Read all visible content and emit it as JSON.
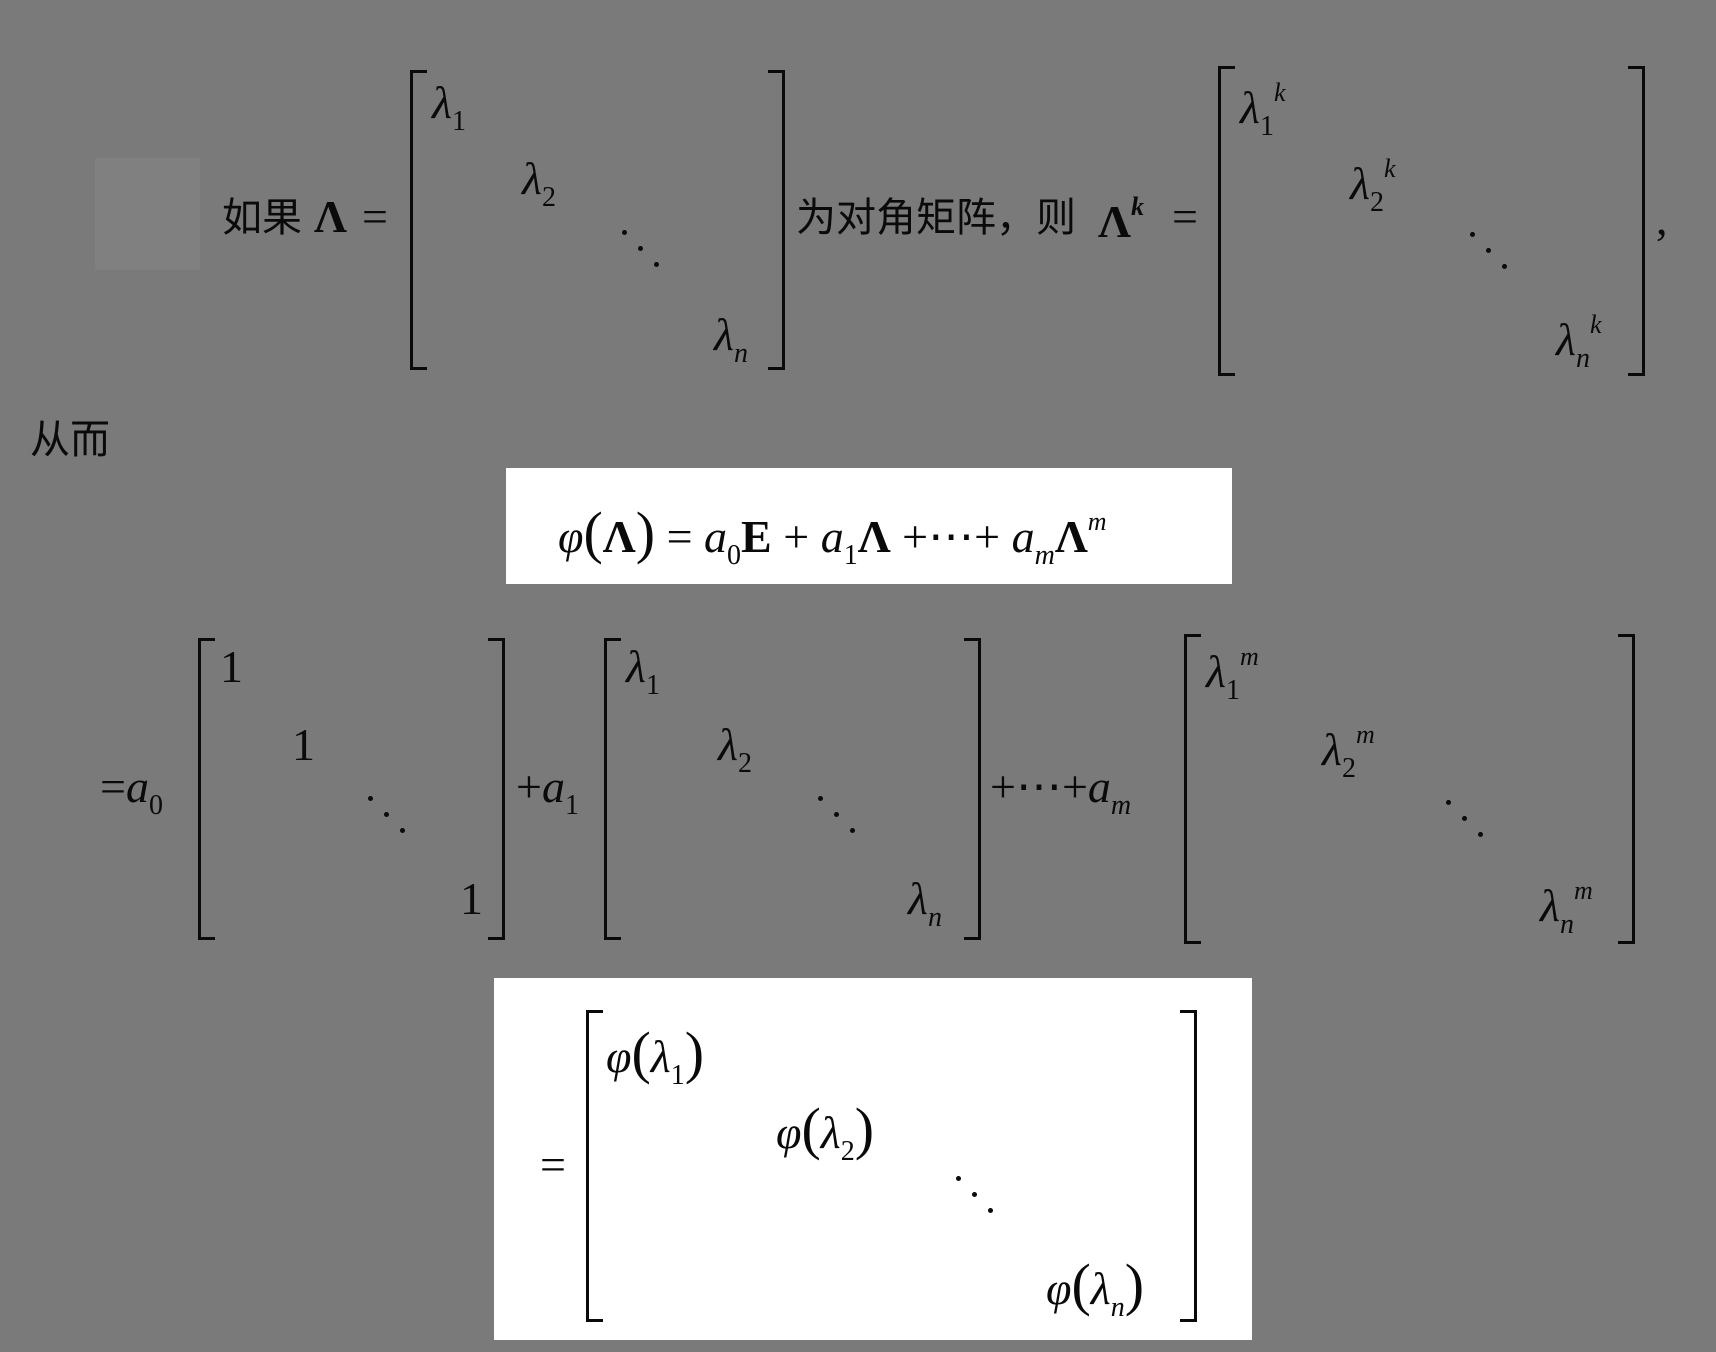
{
  "intro": {
    "if_text": "如果",
    "Lambda": "Λ",
    "eq": "=",
    "diag_text": "为对角矩阵，则",
    "k": "k",
    "comma": ","
  },
  "matrix_lambda": {
    "base": "λ",
    "subs": [
      "1",
      "2",
      "n"
    ]
  },
  "matrix_lambda_k": {
    "base": "λ",
    "subs": [
      "1",
      "2",
      "n"
    ],
    "exp": "k"
  },
  "thus_text": "从而",
  "formula": {
    "phi": "φ",
    "Lambda": "Λ",
    "eq": "=",
    "a": "a",
    "E": "E",
    "plus": "+",
    "cdots": "⋯",
    "sub0": "0",
    "sub1": "1",
    "subm": "m",
    "expm": "m"
  },
  "expansion": {
    "eq": "=",
    "a": "a",
    "plus": "+",
    "cdots": "⋯",
    "sub0": "0",
    "sub1": "1",
    "subm": "m",
    "ones": [
      "1",
      "1",
      "1"
    ],
    "lambda": "λ",
    "subs": [
      "1",
      "2",
      "n"
    ],
    "exp_m": "m"
  },
  "result": {
    "eq": "=",
    "phi": "φ",
    "lambda": "λ",
    "subs": [
      "1",
      "2",
      "n"
    ]
  }
}
